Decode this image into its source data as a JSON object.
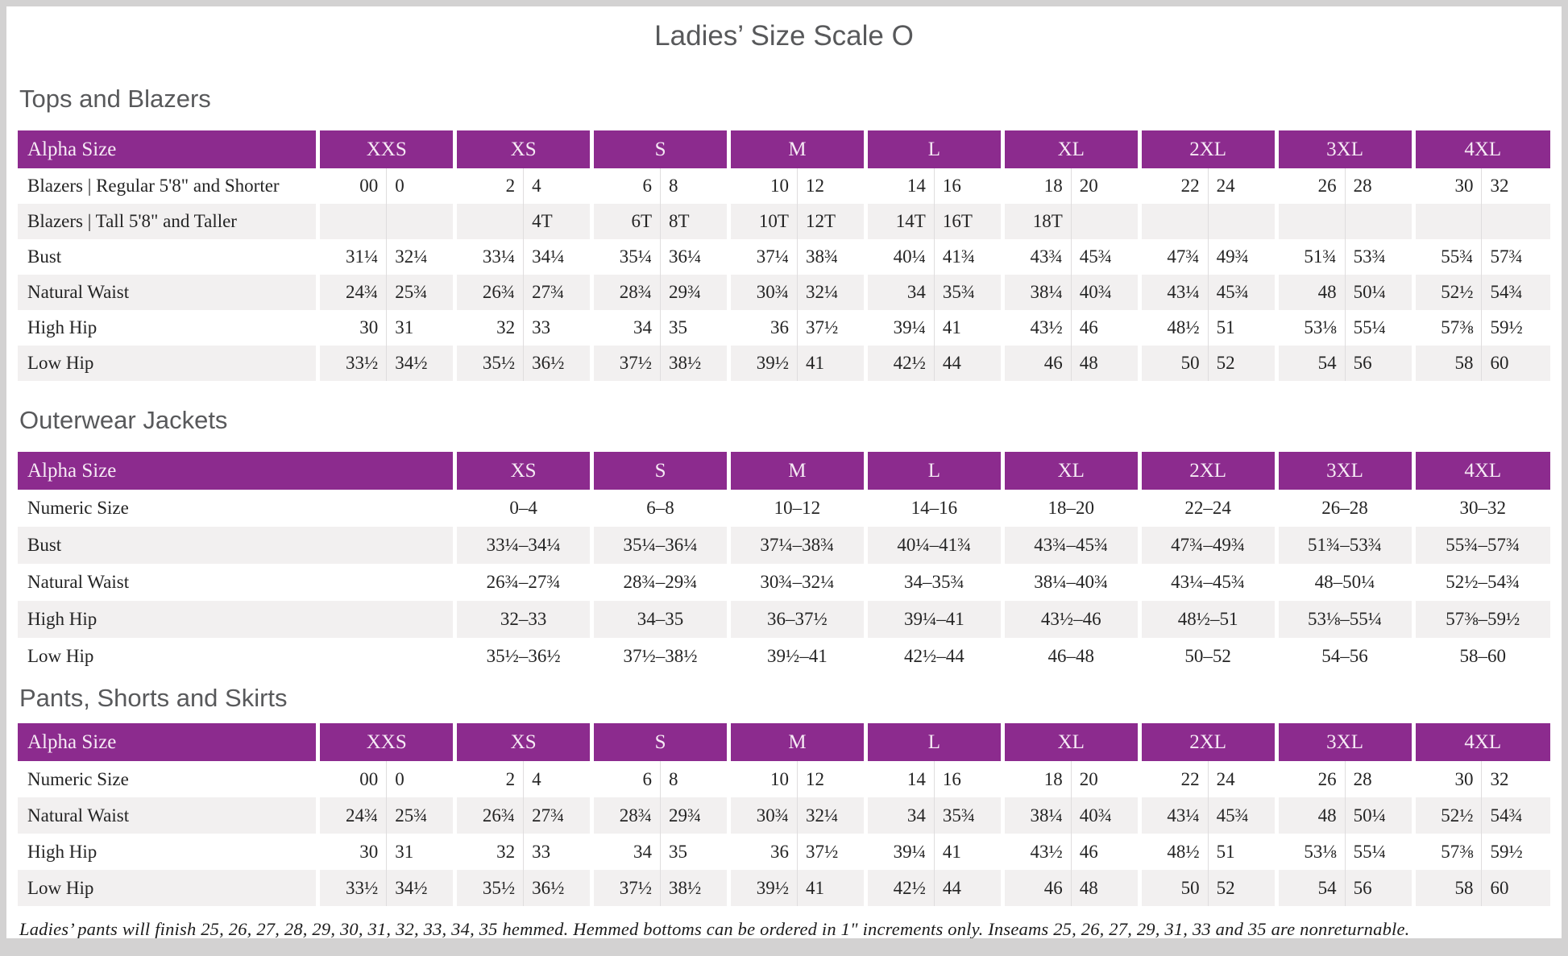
{
  "page": {
    "title": "Ladies’ Size Scale O"
  },
  "colors": {
    "header_purple": "#8c2b8e",
    "header_text": "#f6eaf5",
    "row_stripe": "#f2f0f0",
    "heading_gray": "#58595b"
  },
  "tables": [
    {
      "heading": "Tops and Blazers",
      "type": "paired",
      "label_header": "Alpha Size",
      "size_groups": [
        "XXS",
        "XS",
        "S",
        "M",
        "L",
        "XL",
        "2XL",
        "3XL",
        "4XL"
      ],
      "rows": [
        {
          "label": "Blazers | Regular 5'8\" and Shorter",
          "cells": [
            [
              "00",
              "0"
            ],
            [
              "2",
              "4"
            ],
            [
              "6",
              "8"
            ],
            [
              "10",
              "12"
            ],
            [
              "14",
              "16"
            ],
            [
              "18",
              "20"
            ],
            [
              "22",
              "24"
            ],
            [
              "26",
              "28"
            ],
            [
              "30",
              "32"
            ]
          ]
        },
        {
          "label": "Blazers | Tall 5'8\" and Taller",
          "cells": [
            [
              "",
              ""
            ],
            [
              "",
              "4T"
            ],
            [
              "6T",
              "8T"
            ],
            [
              "10T",
              "12T"
            ],
            [
              "14T",
              "16T"
            ],
            [
              "18T",
              ""
            ],
            [
              "",
              ""
            ],
            [
              "",
              ""
            ],
            [
              "",
              ""
            ]
          ]
        },
        {
          "label": "Bust",
          "cells": [
            [
              "31¼",
              "32¼"
            ],
            [
              "33¼",
              "34¼"
            ],
            [
              "35¼",
              "36¼"
            ],
            [
              "37¼",
              "38¾"
            ],
            [
              "40¼",
              "41¾"
            ],
            [
              "43¾",
              "45¾"
            ],
            [
              "47¾",
              "49¾"
            ],
            [
              "51¾",
              "53¾"
            ],
            [
              "55¾",
              "57¾"
            ]
          ]
        },
        {
          "label": "Natural Waist",
          "cells": [
            [
              "24¾",
              "25¾"
            ],
            [
              "26¾",
              "27¾"
            ],
            [
              "28¾",
              "29¾"
            ],
            [
              "30¾",
              "32¼"
            ],
            [
              "34",
              "35¾"
            ],
            [
              "38¼",
              "40¾"
            ],
            [
              "43¼",
              "45¾"
            ],
            [
              "48",
              "50¼"
            ],
            [
              "52½",
              "54¾"
            ]
          ]
        },
        {
          "label": "High Hip",
          "cells": [
            [
              "30",
              "31"
            ],
            [
              "32",
              "33"
            ],
            [
              "34",
              "35"
            ],
            [
              "36",
              "37½"
            ],
            [
              "39¼",
              "41"
            ],
            [
              "43½",
              "46"
            ],
            [
              "48½",
              "51"
            ],
            [
              "53⅛",
              "55¼"
            ],
            [
              "57⅜",
              "59½"
            ]
          ]
        },
        {
          "label": "Low Hip",
          "cells": [
            [
              "33½",
              "34½"
            ],
            [
              "35½",
              "36½"
            ],
            [
              "37½",
              "38½"
            ],
            [
              "39½",
              "41"
            ],
            [
              "42½",
              "44"
            ],
            [
              "46",
              "48"
            ],
            [
              "50",
              "52"
            ],
            [
              "54",
              "56"
            ],
            [
              "58",
              "60"
            ]
          ]
        }
      ]
    },
    {
      "heading": "Outerwear Jackets",
      "type": "single",
      "label_header": "Alpha Size",
      "size_groups": [
        "XS",
        "S",
        "M",
        "L",
        "XL",
        "2XL",
        "3XL",
        "4XL"
      ],
      "rows": [
        {
          "label": "Numeric Size",
          "cells": [
            "0–4",
            "6–8",
            "10–12",
            "14–16",
            "18–20",
            "22–24",
            "26–28",
            "30–32"
          ]
        },
        {
          "label": "Bust",
          "cells": [
            "33¼–34¼",
            "35¼–36¼",
            "37¼–38¾",
            "40¼–41¾",
            "43¾–45¾",
            "47¾–49¾",
            "51¾–53¾",
            "55¾–57¾"
          ]
        },
        {
          "label": "Natural Waist",
          "cells": [
            "26¾–27¾",
            "28¾–29¾",
            "30¾–32¼",
            "34–35¾",
            "38¼–40¾",
            "43¼–45¾",
            "48–50¼",
            "52½–54¾"
          ]
        },
        {
          "label": "High Hip",
          "cells": [
            "32–33",
            "34–35",
            "36–37½",
            "39¼–41",
            "43½–46",
            "48½–51",
            "53⅛–55¼",
            "57⅜–59½"
          ]
        },
        {
          "label": "Low Hip",
          "cells": [
            "35½–36½",
            "37½–38½",
            "39½–41",
            "42½–44",
            "46–48",
            "50–52",
            "54–56",
            "58–60"
          ]
        }
      ]
    },
    {
      "heading": "Pants, Shorts and Skirts",
      "type": "paired",
      "label_header": "Alpha Size",
      "size_groups": [
        "XXS",
        "XS",
        "S",
        "M",
        "L",
        "XL",
        "2XL",
        "3XL",
        "4XL"
      ],
      "rows": [
        {
          "label": "Numeric Size",
          "cells": [
            [
              "00",
              "0"
            ],
            [
              "2",
              "4"
            ],
            [
              "6",
              "8"
            ],
            [
              "10",
              "12"
            ],
            [
              "14",
              "16"
            ],
            [
              "18",
              "20"
            ],
            [
              "22",
              "24"
            ],
            [
              "26",
              "28"
            ],
            [
              "30",
              "32"
            ]
          ]
        },
        {
          "label": "Natural Waist",
          "cells": [
            [
              "24¾",
              "25¾"
            ],
            [
              "26¾",
              "27¾"
            ],
            [
              "28¾",
              "29¾"
            ],
            [
              "30¾",
              "32¼"
            ],
            [
              "34",
              "35¾"
            ],
            [
              "38¼",
              "40¾"
            ],
            [
              "43¼",
              "45¾"
            ],
            [
              "48",
              "50¼"
            ],
            [
              "52½",
              "54¾"
            ]
          ]
        },
        {
          "label": "High Hip",
          "cells": [
            [
              "30",
              "31"
            ],
            [
              "32",
              "33"
            ],
            [
              "34",
              "35"
            ],
            [
              "36",
              "37½"
            ],
            [
              "39¼",
              "41"
            ],
            [
              "43½",
              "46"
            ],
            [
              "48½",
              "51"
            ],
            [
              "53⅛",
              "55¼"
            ],
            [
              "57⅜",
              "59½"
            ]
          ]
        },
        {
          "label": "Low Hip",
          "cells": [
            [
              "33½",
              "34½"
            ],
            [
              "35½",
              "36½"
            ],
            [
              "37½",
              "38½"
            ],
            [
              "39½",
              "41"
            ],
            [
              "42½",
              "44"
            ],
            [
              "46",
              "48"
            ],
            [
              "50",
              "52"
            ],
            [
              "54",
              "56"
            ],
            [
              "58",
              "60"
            ]
          ]
        }
      ]
    }
  ],
  "footnote": "Ladies’ pants will finish 25, 26, 27, 28, 29, 30, 31, 32, 33, 34, 35 hemmed. Hemmed bottoms can be ordered in 1\" increments only. Inseams 25, 26, 27, 29, 31, 33 and 35 are nonreturnable."
}
